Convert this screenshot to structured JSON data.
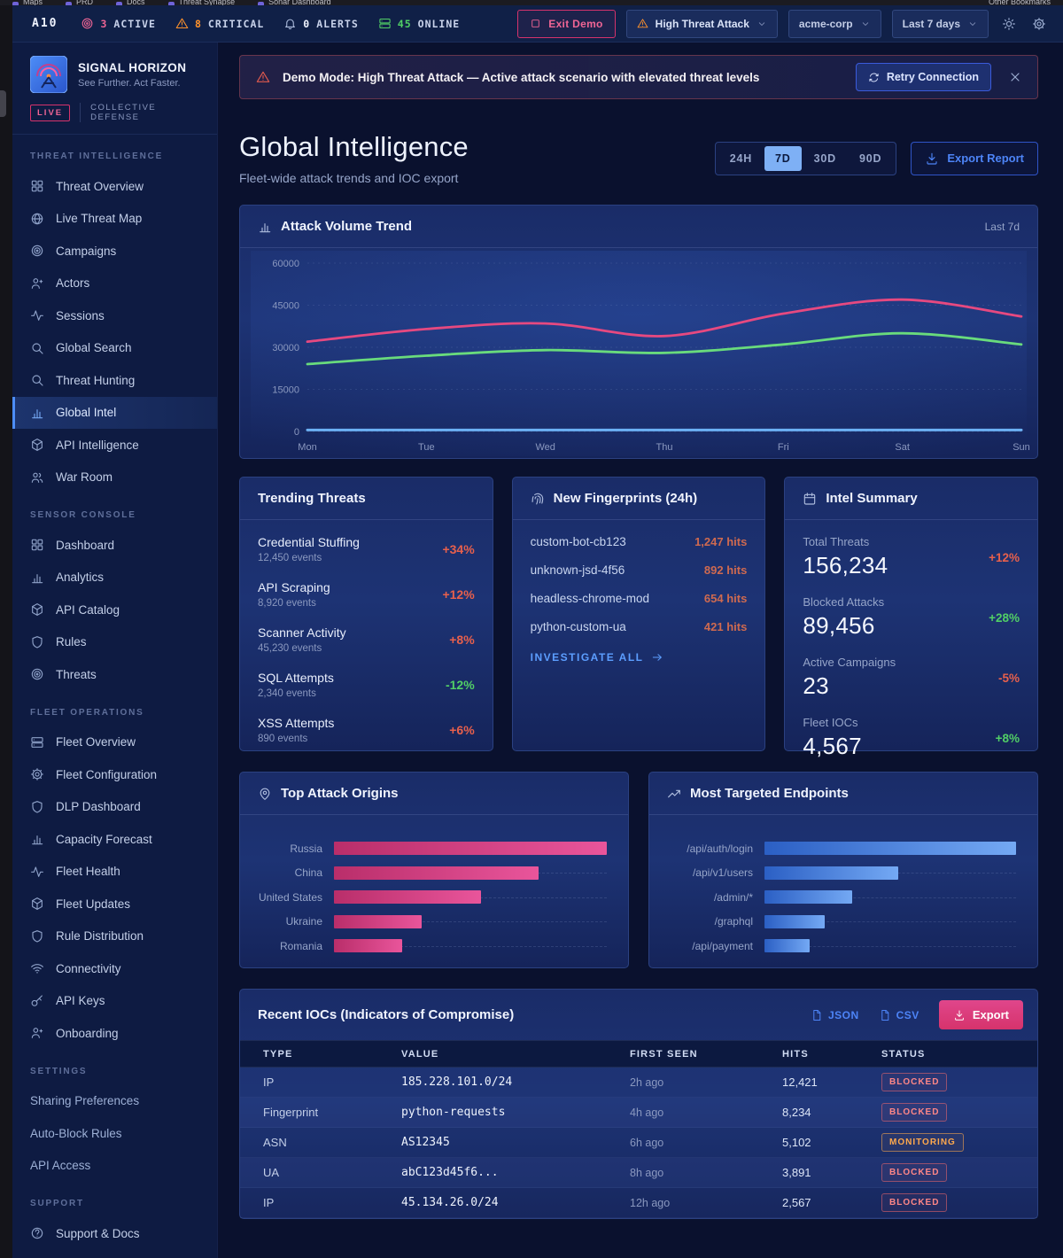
{
  "bookmarks": {
    "items": [
      "Maps",
      "PRD",
      "Docs",
      "Threat Synapse",
      "Sonar Dashboard"
    ],
    "right": "Other Bookmarks"
  },
  "topbar": {
    "brand": "A10",
    "stats": [
      {
        "icon": "target-icon",
        "value": "3",
        "label": "ACTIVE",
        "color": "#f06595",
        "value_color": "#f06595"
      },
      {
        "icon": "warning-icon",
        "value": "8",
        "label": "CRITICAL",
        "color": "#ff922b",
        "value_color": "#ff922b"
      },
      {
        "icon": "bell-icon",
        "value": "0",
        "label": "ALERTS",
        "color": "#aebdde",
        "value_color": "#f0f4ff"
      },
      {
        "icon": "server-icon",
        "value": "45",
        "label": "ONLINE",
        "color": "#51cf66",
        "value_color": "#51cf66"
      }
    ],
    "exit_demo": "Exit Demo",
    "scenario": "High Threat Attack",
    "org": "acme-corp",
    "range": "Last 7 days"
  },
  "sidebar": {
    "logo_title": "SIGNAL HORIZON",
    "logo_subtitle": "See Further. Act Faster.",
    "live_badge": "LIVE",
    "live_label": "COLLECTIVE DEFENSE",
    "sections": [
      {
        "label": "THREAT INTELLIGENCE",
        "items": [
          {
            "label": "Threat Overview",
            "icon": "grid-icon"
          },
          {
            "label": "Live Threat Map",
            "icon": "globe-icon"
          },
          {
            "label": "Campaigns",
            "icon": "target-icon"
          },
          {
            "label": "Actors",
            "icon": "user-plus-icon"
          },
          {
            "label": "Sessions",
            "icon": "activity-icon"
          },
          {
            "label": "Global Search",
            "icon": "search-icon"
          },
          {
            "label": "Threat Hunting",
            "icon": "search-icon"
          },
          {
            "label": "Global Intel",
            "icon": "bar-chart-icon",
            "active": true
          },
          {
            "label": "API Intelligence",
            "icon": "cube-icon"
          },
          {
            "label": "War Room",
            "icon": "users-icon"
          }
        ]
      },
      {
        "label": "SENSOR CONSOLE",
        "items": [
          {
            "label": "Dashboard",
            "icon": "grid-icon"
          },
          {
            "label": "Analytics",
            "icon": "bar-chart-icon"
          },
          {
            "label": "API Catalog",
            "icon": "cube-icon"
          },
          {
            "label": "Rules",
            "icon": "shield-icon"
          },
          {
            "label": "Threats",
            "icon": "target-icon"
          }
        ]
      },
      {
        "label": "FLEET OPERATIONS",
        "items": [
          {
            "label": "Fleet Overview",
            "icon": "server-icon"
          },
          {
            "label": "Fleet Configuration",
            "icon": "gear-icon"
          },
          {
            "label": "DLP Dashboard",
            "icon": "shield-icon"
          },
          {
            "label": "Capacity Forecast",
            "icon": "bar-chart-icon"
          },
          {
            "label": "Fleet Health",
            "icon": "activity-icon"
          },
          {
            "label": "Fleet Updates",
            "icon": "cube-icon"
          },
          {
            "label": "Rule Distribution",
            "icon": "shield-icon"
          },
          {
            "label": "Connectivity",
            "icon": "wifi-icon"
          },
          {
            "label": "API Keys",
            "icon": "key-icon"
          },
          {
            "label": "Onboarding",
            "icon": "user-plus-icon"
          }
        ]
      },
      {
        "label": "SETTINGS",
        "items": [
          {
            "label": "Sharing Preferences"
          },
          {
            "label": "Auto-Block Rules"
          },
          {
            "label": "API Access"
          }
        ]
      },
      {
        "label": "SUPPORT",
        "items": [
          {
            "label": "Support & Docs",
            "icon": "help-icon"
          }
        ]
      }
    ]
  },
  "banner": {
    "text": "Demo Mode: High Threat Attack — Active attack scenario with elevated threat levels",
    "retry_label": "Retry Connection"
  },
  "page": {
    "title": "Global Intelligence",
    "subtitle": "Fleet-wide attack trends and IOC export",
    "ranges": [
      "24H",
      "7D",
      "30D",
      "90D"
    ],
    "active_range": "7D",
    "export_label": "Export Report"
  },
  "chart_data": [
    {
      "type": "line",
      "title": "Attack Volume Trend",
      "badge": "Last 7d",
      "icon": "bar-chart-icon",
      "x": [
        "Mon",
        "Tue",
        "Wed",
        "Thu",
        "Fri",
        "Sat",
        "Sun"
      ],
      "ylim": [
        0,
        60000
      ],
      "yticks": [
        0,
        15000,
        30000,
        45000,
        60000
      ],
      "grid": true,
      "legend": "none",
      "series": [
        {
          "name": "attack-volume",
          "color": "#e64980",
          "values": [
            32000,
            36500,
            38500,
            34000,
            42000,
            47000,
            41000
          ]
        },
        {
          "name": "blocked-volume",
          "color": "#69db7c",
          "values": [
            24000,
            27000,
            29000,
            28000,
            31000,
            35000,
            31000
          ]
        },
        {
          "name": "baseline",
          "color": "#6cb1f5",
          "values": [
            500,
            500,
            500,
            500,
            500,
            500,
            500
          ]
        }
      ]
    },
    {
      "type": "bar",
      "orientation": "horizontal",
      "title": "Top Attack Origins",
      "icon": "map-pin-icon",
      "categories": [
        "Russia",
        "China",
        "United States",
        "Ukraine",
        "Romania"
      ],
      "values": [
        100,
        75,
        54,
        32,
        25
      ],
      "units": "relative-% (estimated from bar widths)",
      "bar_gradient": [
        "#b92e6a",
        "#e9559b"
      ]
    },
    {
      "type": "bar",
      "orientation": "horizontal",
      "title": "Most Targeted Endpoints",
      "icon": "trending-up-icon",
      "categories": [
        "/api/auth/login",
        "/api/v1/users",
        "/admin/*",
        "/graphql",
        "/api/payment"
      ],
      "values": [
        100,
        53,
        35,
        24,
        18
      ],
      "units": "relative-% (estimated from bar widths)",
      "bar_gradient": [
        "#2b5fc4",
        "#74a9f4"
      ]
    }
  ],
  "trending": {
    "title": "Trending Threats",
    "items": [
      {
        "name": "Credential Stuffing",
        "events": "12,450 events",
        "trend": "+34%",
        "color": "#e8604c"
      },
      {
        "name": "API Scraping",
        "events": "8,920 events",
        "trend": "+12%",
        "color": "#e8604c"
      },
      {
        "name": "Scanner Activity",
        "events": "45,230 events",
        "trend": "+8%",
        "color": "#e8604c"
      },
      {
        "name": "SQL Attempts",
        "events": "2,340 events",
        "trend": "-12%",
        "color": "#51cf66"
      },
      {
        "name": "XSS Attempts",
        "events": "890 events",
        "trend": "+6%",
        "color": "#e8604c"
      }
    ]
  },
  "fingerprints": {
    "title": "New Fingerprints (24h)",
    "icon": "fingerprint-icon",
    "items": [
      {
        "name": "custom-bot-cb123",
        "hits": "1,247 hits"
      },
      {
        "name": "unknown-jsd-4f56",
        "hits": "892 hits"
      },
      {
        "name": "headless-chrome-mod",
        "hits": "654 hits"
      },
      {
        "name": "python-custom-ua",
        "hits": "421 hits"
      }
    ],
    "link_label": "INVESTIGATE ALL"
  },
  "intel_summary": {
    "title": "Intel Summary",
    "icon": "calendar-icon",
    "items": [
      {
        "label": "Total Threats",
        "value": "156,234",
        "trend": "+12%",
        "color": "#e8604c"
      },
      {
        "label": "Blocked Attacks",
        "value": "89,456",
        "trend": "+28%",
        "color": "#51cf66"
      },
      {
        "label": "Active Campaigns",
        "value": "23",
        "trend": "-5%",
        "color": "#e8604c"
      },
      {
        "label": "Fleet IOCs",
        "value": "4,567",
        "trend": "+8%",
        "color": "#51cf66"
      }
    ]
  },
  "iocs": {
    "title": "Recent IOCs (Indicators of Compromise)",
    "json_label": "JSON",
    "csv_label": "CSV",
    "export_label": "Export",
    "columns": [
      "TYPE",
      "VALUE",
      "FIRST SEEN",
      "HITS",
      "STATUS"
    ],
    "rows": [
      {
        "type": "IP",
        "value": "185.228.101.0/24",
        "first_seen": "2h ago",
        "hits": "12,421",
        "status": "BLOCKED"
      },
      {
        "type": "Fingerprint",
        "value": "python-requests",
        "first_seen": "4h ago",
        "hits": "8,234",
        "status": "BLOCKED"
      },
      {
        "type": "ASN",
        "value": "AS12345",
        "first_seen": "6h ago",
        "hits": "5,102",
        "status": "MONITORING"
      },
      {
        "type": "UA",
        "value": "abC123d45f6...",
        "first_seen": "8h ago",
        "hits": "3,891",
        "status": "BLOCKED"
      },
      {
        "type": "IP",
        "value": "45.134.26.0/24",
        "first_seen": "12h ago",
        "hits": "2,567",
        "status": "BLOCKED"
      }
    ]
  },
  "colors": {
    "accent_pink": "#e64980",
    "accent_blue": "#4d84f7",
    "green": "#51cf66",
    "orange": "#ff922b",
    "red": "#e8604c",
    "card_border": "#2b4181"
  }
}
